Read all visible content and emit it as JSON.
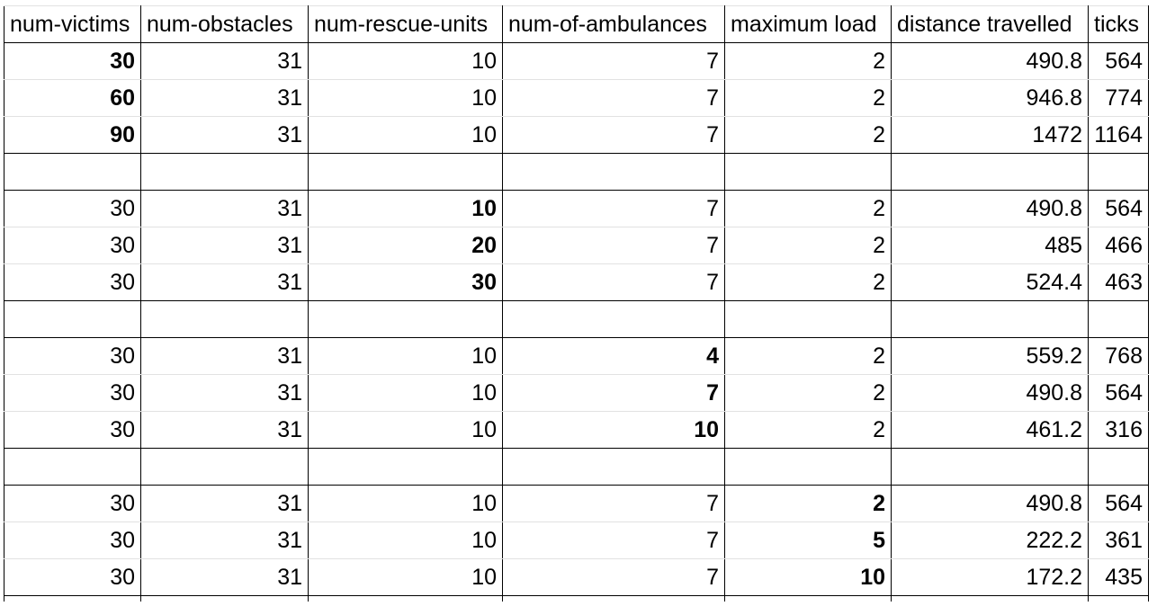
{
  "table": {
    "headers": [
      "num-victims",
      "num-obstacles",
      "num-rescue-units",
      "num-of-ambulances",
      "maximum load",
      "distance travelled",
      "ticks"
    ],
    "groups": [
      {
        "bold_column": 0,
        "rows": [
          [
            "30",
            "31",
            "10",
            "7",
            "2",
            "490.8",
            "564"
          ],
          [
            "60",
            "31",
            "10",
            "7",
            "2",
            "946.8",
            "774"
          ],
          [
            "90",
            "31",
            "10",
            "7",
            "2",
            "1472",
            "1164"
          ]
        ]
      },
      {
        "bold_column": 2,
        "rows": [
          [
            "30",
            "31",
            "10",
            "7",
            "2",
            "490.8",
            "564"
          ],
          [
            "30",
            "31",
            "20",
            "7",
            "2",
            "485",
            "466"
          ],
          [
            "30",
            "31",
            "30",
            "7",
            "2",
            "524.4",
            "463"
          ]
        ]
      },
      {
        "bold_column": 3,
        "rows": [
          [
            "30",
            "31",
            "10",
            "4",
            "2",
            "559.2",
            "768"
          ],
          [
            "30",
            "31",
            "10",
            "7",
            "2",
            "490.8",
            "564"
          ],
          [
            "30",
            "31",
            "10",
            "10",
            "2",
            "461.2",
            "316"
          ]
        ]
      },
      {
        "bold_column": 4,
        "rows": [
          [
            "30",
            "31",
            "10",
            "7",
            "2",
            "490.8",
            "564"
          ],
          [
            "30",
            "31",
            "10",
            "7",
            "5",
            "222.2",
            "361"
          ],
          [
            "30",
            "31",
            "10",
            "7",
            "10",
            "172.2",
            "435"
          ]
        ]
      }
    ]
  }
}
